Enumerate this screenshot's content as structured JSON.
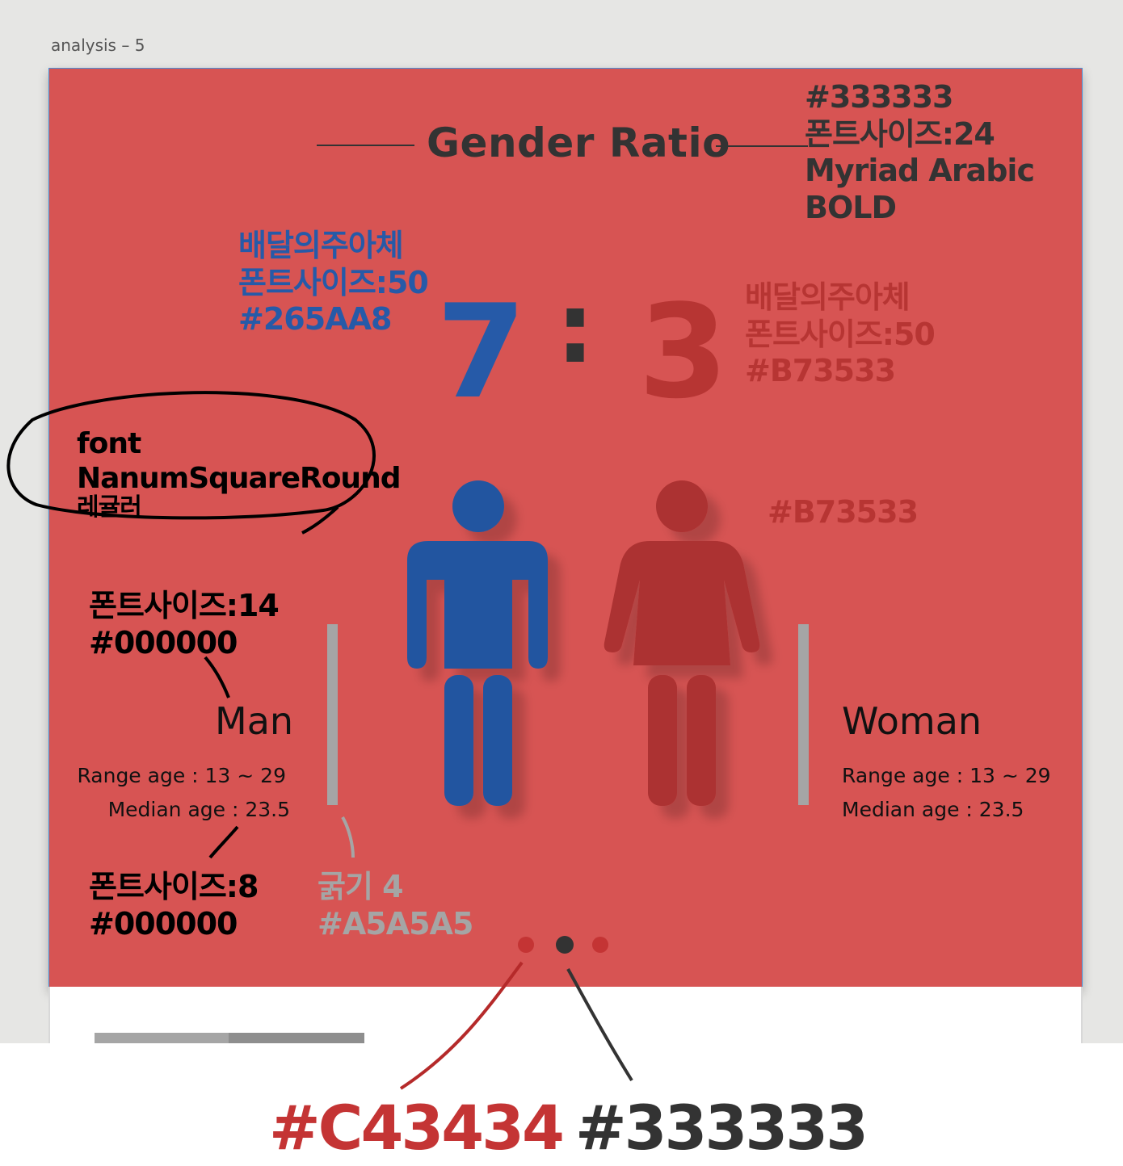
{
  "frame_label": "analysis – 5",
  "title": "Gender Ratio",
  "ratio": {
    "man": "7",
    "separator": ":",
    "woman": "3"
  },
  "man": {
    "label": "Man",
    "range": "Range age : 13 ~ 29",
    "median": "Median age : 23.5"
  },
  "woman": {
    "label": "Woman",
    "range": "Range age : 13 ~ 29",
    "median": "Median age : 23.5"
  },
  "annotations": {
    "title_spec": [
      "#333333",
      "폰트사이즈:24",
      "Myriad Arabic",
      "BOLD"
    ],
    "man_num_spec": [
      "배달의주아체",
      "폰트사이즈:50",
      "#265AA8"
    ],
    "woman_num_spec": [
      "배달의주아체",
      "폰트사이즈:50",
      "#B73533"
    ],
    "font_spec": [
      "font",
      "NanumSquareRound",
      "레귤러"
    ],
    "icon_color": "#B73533",
    "label_spec": [
      "폰트사이즈:14",
      "#000000"
    ],
    "small_spec": [
      "폰트사이즈:8",
      "#000000"
    ],
    "bar_spec": [
      "굵기 4",
      "#A5A5A5"
    ],
    "dot_red": "#C43434",
    "dot_dark": "#333333"
  },
  "colors": {
    "background": "#D75453",
    "man_blue": "#265AA8",
    "woman_red": "#B73533",
    "title": "#333333",
    "bar": "#A5A5A5",
    "dot_red": "#C43434",
    "dot_dark": "#333333"
  },
  "pagination": {
    "pages": 3,
    "active": 2
  }
}
